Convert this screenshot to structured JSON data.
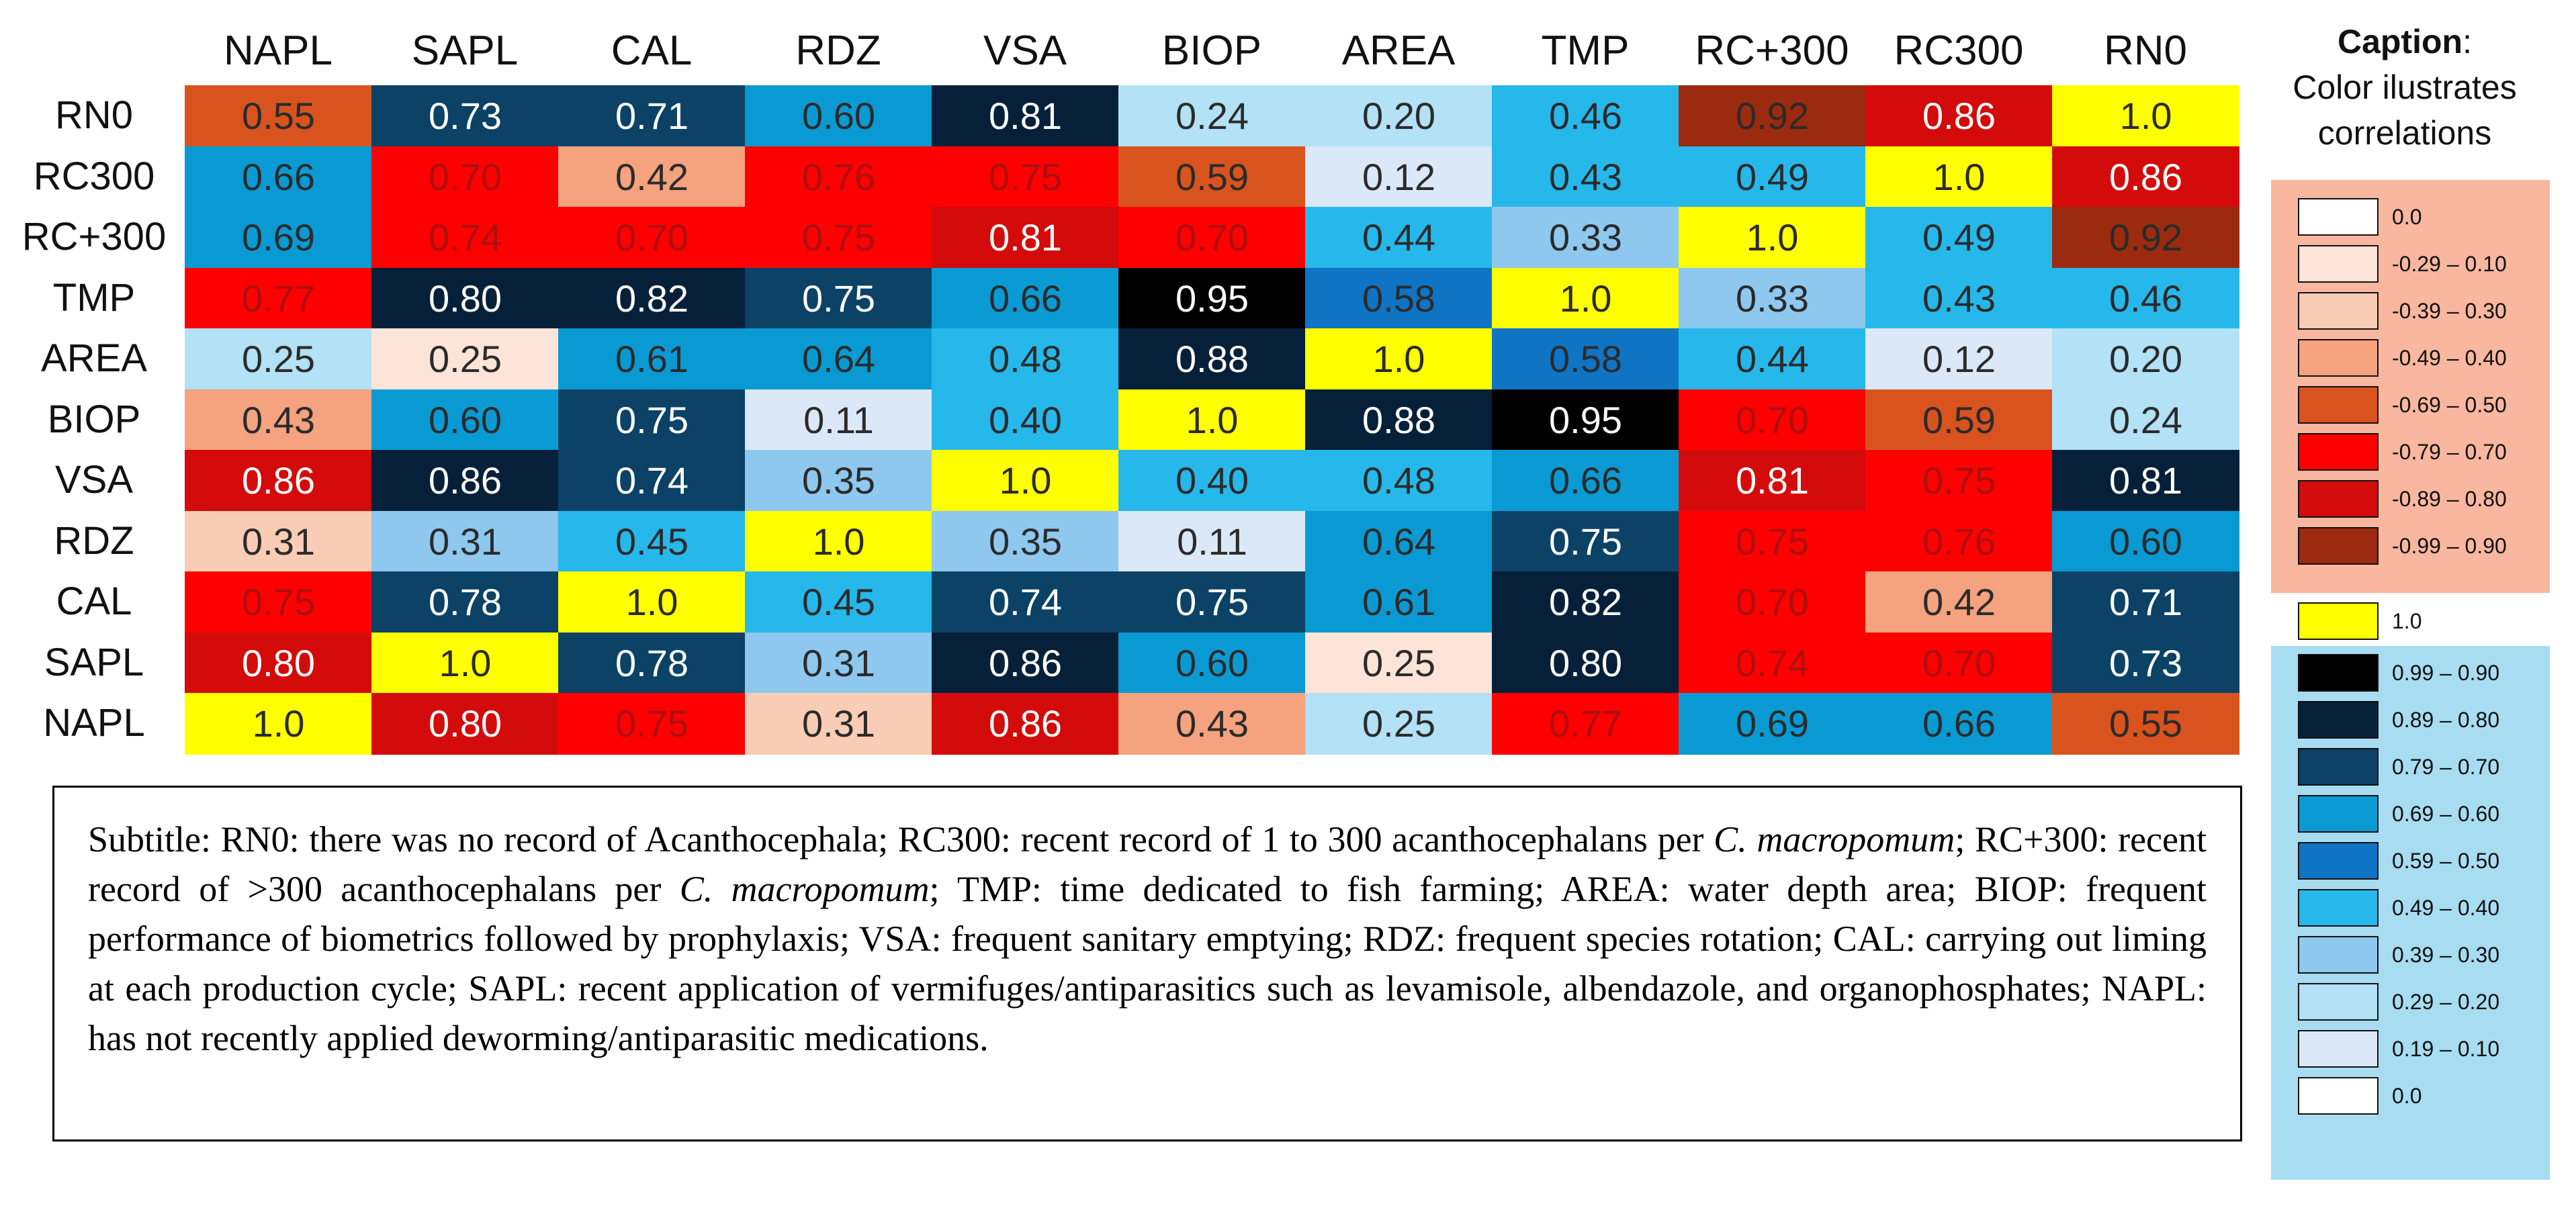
{
  "chart_data": {
    "type": "heatmap",
    "title": "",
    "columns": [
      "NAPL",
      "SAPL",
      "CAL",
      "RDZ",
      "VSA",
      "BIOP",
      "AREA",
      "TMP",
      "RC+300",
      "RC300",
      "RN0"
    ],
    "rows": [
      "RN0",
      "RC300",
      "RC+300",
      "TMP",
      "AREA",
      "BIOP",
      "VSA",
      "RDZ",
      "CAL",
      "SAPL",
      "NAPL"
    ],
    "values": [
      [
        "0.55",
        "0.73",
        "0.71",
        "0.60",
        "0.81",
        "0.24",
        "0.20",
        "0.46",
        "0.92",
        "0.86",
        "1.0"
      ],
      [
        "0.66",
        "0.70",
        "0.42",
        "0.76",
        "0.75",
        "0.59",
        "0.12",
        "0.43",
        "0.49",
        "1.0",
        "0.86"
      ],
      [
        "0.69",
        "0.74",
        "0.70",
        "0.75",
        "0.81",
        "0.70",
        "0.44",
        "0.33",
        "1.0",
        "0.49",
        "0.92"
      ],
      [
        "0.77",
        "0.80",
        "0.82",
        "0.75",
        "0.66",
        "0.95",
        "0.58",
        "1.0",
        "0.33",
        "0.43",
        "0.46"
      ],
      [
        "0.25",
        "0.25",
        "0.61",
        "0.64",
        "0.48",
        "0.88",
        "1.0",
        "0.58",
        "0.44",
        "0.12",
        "0.20"
      ],
      [
        "0.43",
        "0.60",
        "0.75",
        "0.11",
        "0.40",
        "1.0",
        "0.88",
        "0.95",
        "0.70",
        "0.59",
        "0.24"
      ],
      [
        "0.86",
        "0.86",
        "0.74",
        "0.35",
        "1.0",
        "0.40",
        "0.48",
        "0.66",
        "0.81",
        "0.75",
        "0.81"
      ],
      [
        "0.31",
        "0.31",
        "0.45",
        "1.0",
        "0.35",
        "0.11",
        "0.64",
        "0.75",
        "0.75",
        "0.76",
        "0.60"
      ],
      [
        "0.75",
        "0.78",
        "1.0",
        "0.45",
        "0.74",
        "0.75",
        "0.61",
        "0.82",
        "0.70",
        "0.42",
        "0.71"
      ],
      [
        "0.80",
        "1.0",
        "0.78",
        "0.31",
        "0.86",
        "0.60",
        "0.25",
        "0.80",
        "0.74",
        "0.70",
        "0.73"
      ],
      [
        "1.0",
        "0.80",
        "0.75",
        "0.31",
        "0.86",
        "0.43",
        "0.25",
        "0.77",
        "0.69",
        "0.66",
        "0.55"
      ]
    ],
    "signs": [
      [
        "-",
        "+",
        "+",
        "+",
        "+",
        "+",
        "+",
        "+",
        "-",
        "-",
        "1"
      ],
      [
        "+",
        "-",
        "-",
        "-",
        "-",
        "-",
        "+",
        "+",
        "+",
        "1",
        "-"
      ],
      [
        "+",
        "-",
        "-",
        "-",
        "-",
        "-",
        "+",
        "+",
        "1",
        "+",
        "-"
      ],
      [
        "-",
        "+",
        "+",
        "+",
        "+",
        "+",
        "+",
        "1",
        "+",
        "+",
        "+"
      ],
      [
        "+",
        "-",
        "+",
        "+",
        "+",
        "+",
        "1",
        "+",
        "+",
        "+",
        "+"
      ],
      [
        "-",
        "+",
        "+",
        "+",
        "+",
        "1",
        "+",
        "+",
        "-",
        "-",
        "+"
      ],
      [
        "-",
        "+",
        "+",
        "+",
        "1",
        "+",
        "+",
        "+",
        "-",
        "-",
        "+"
      ],
      [
        "-",
        "+",
        "+",
        "1",
        "+",
        "+",
        "+",
        "+",
        "-",
        "-",
        "+"
      ],
      [
        "-",
        "+",
        "1",
        "+",
        "+",
        "+",
        "+",
        "+",
        "-",
        "-",
        "+"
      ],
      [
        "-",
        "1",
        "+",
        "+",
        "+",
        "+",
        "-",
        "+",
        "-",
        "-",
        "+"
      ],
      [
        "1",
        "-",
        "-",
        "-",
        "-",
        "-",
        "+",
        "-",
        "+",
        "+",
        "-"
      ]
    ],
    "caption": {
      "title_bold": "Caption",
      "title_rest": ":",
      "lines": [
        "Color ilustrates",
        "correlations"
      ]
    },
    "legend_negative": [
      {
        "label": "0.0",
        "color": "#ffffff"
      },
      {
        "label": "-0.29 – 0.10",
        "color": "#fde4d8"
      },
      {
        "label": "-0.39 – 0.30",
        "color": "#f9cdb5"
      },
      {
        "label": "-0.49 – 0.40",
        "color": "#f5a27f"
      },
      {
        "label": "-0.69 – 0.50",
        "color": "#d9531e"
      },
      {
        "label": "-0.79 – 0.70",
        "color": "#ff0000"
      },
      {
        "label": "-0.89 – 0.80",
        "color": "#d40b0b"
      },
      {
        "label": "-0.99 – 0.90",
        "color": "#9b2a0e"
      }
    ],
    "legend_one": {
      "label": "1.0",
      "color": "#ffff00"
    },
    "legend_positive": [
      {
        "label": "0.99 – 0.90",
        "color": "#000000"
      },
      {
        "label": "0.89 – 0.80",
        "color": "#07203a"
      },
      {
        "label": "0.79 – 0.70",
        "color": "#0b4266"
      },
      {
        "label": "0.69 – 0.60",
        "color": "#0a9ad3"
      },
      {
        "label": "0.59 – 0.50",
        "color": "#0f74c4"
      },
      {
        "label": "0.49 – 0.40",
        "color": "#26b8ea"
      },
      {
        "label": "0.39 – 0.30",
        "color": "#8ec8ef"
      },
      {
        "label": "0.29 – 0.20",
        "color": "#b3e1f6"
      },
      {
        "label": "0.19 – 0.10",
        "color": "#dbe8f7"
      },
      {
        "label": "0.0",
        "color": "#ffffff"
      }
    ],
    "legend_panel_colors": {
      "negative": "#f8b79e",
      "positive": "#a7dcf1"
    },
    "text_colors": {
      "dark": "#2b2b2b",
      "light": "#ffffff",
      "on_red": "#ad0f0f"
    }
  },
  "subtitle": {
    "p1": "Subtitle: RN0: there was no record of Acanthocephala; RC300: recent record of 1 to 300 acanthocephalans per ",
    "i1": "C. macropomum",
    "p2": "; RC+300: recent record of >300 acanthocephalans per ",
    "i2": "C. macropomum",
    "p3": "; TMP: time dedicated to fish farming; AREA: water depth area; BIOP: frequent performance of biometrics followed by prophylaxis; VSA: frequent sanitary emptying; RDZ: frequent species rotation; CAL: carrying out liming at each production cycle; SAPL: recent application of vermifuges/antiparasitics such as levamisole, albendazole, and organophosphates; NAPL: has not recently applied deworming/antiparasitic medications."
  }
}
